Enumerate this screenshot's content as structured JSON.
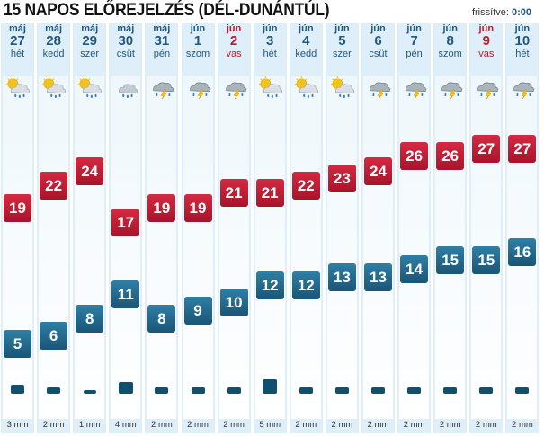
{
  "title": "15 NAPOS ELŐREJELZÉS (DÉL-DUNÁNTÚL)",
  "updated": {
    "label": "frissítve:",
    "time": "0:00"
  },
  "colors": {
    "max": "#c0182e",
    "min": "#1f5f82",
    "header": "#22587e",
    "weekend": "#c0182e"
  },
  "days": [
    {
      "month": "máj",
      "day": "27",
      "weekday": "hét",
      "weekend": false,
      "icon": "partly-cloudy-rain-icon",
      "max": 19,
      "min": 5,
      "precip": 3,
      "rain_label": "3 mm"
    },
    {
      "month": "máj",
      "day": "28",
      "weekday": "kedd",
      "weekend": false,
      "icon": "partly-cloudy-rain-icon",
      "max": 22,
      "min": 6,
      "precip": 2,
      "rain_label": "2 mm"
    },
    {
      "month": "máj",
      "day": "29",
      "weekday": "szer",
      "weekend": false,
      "icon": "partly-cloudy-rain-icon",
      "max": 24,
      "min": 8,
      "precip": 1,
      "rain_label": "1 mm"
    },
    {
      "month": "máj",
      "day": "30",
      "weekday": "csüt",
      "weekend": false,
      "icon": "cloudy-rain-icon",
      "max": 17,
      "min": 11,
      "precip": 4,
      "rain_label": "4 mm"
    },
    {
      "month": "máj",
      "day": "31",
      "weekday": "pén",
      "weekend": false,
      "icon": "thunderstorm-icon",
      "max": 19,
      "min": 8,
      "precip": 2,
      "rain_label": "2 mm"
    },
    {
      "month": "jún",
      "day": "1",
      "weekday": "szom",
      "weekend": false,
      "icon": "thunderstorm-icon",
      "max": 19,
      "min": 9,
      "precip": 2,
      "rain_label": "2 mm"
    },
    {
      "month": "jún",
      "day": "2",
      "weekday": "vas",
      "weekend": true,
      "icon": "thunderstorm-icon",
      "max": 21,
      "min": 10,
      "precip": 2,
      "rain_label": "2 mm"
    },
    {
      "month": "jún",
      "day": "3",
      "weekday": "hét",
      "weekend": false,
      "icon": "partly-cloudy-rain-icon",
      "max": 21,
      "min": 12,
      "precip": 5,
      "rain_label": "5 mm"
    },
    {
      "month": "jún",
      "day": "4",
      "weekday": "kedd",
      "weekend": false,
      "icon": "partly-cloudy-rain-icon",
      "max": 22,
      "min": 12,
      "precip": 2,
      "rain_label": "2 mm"
    },
    {
      "month": "jún",
      "day": "5",
      "weekday": "szer",
      "weekend": false,
      "icon": "partly-cloudy-rain-icon",
      "max": 23,
      "min": 13,
      "precip": 2,
      "rain_label": "2 mm"
    },
    {
      "month": "jún",
      "day": "6",
      "weekday": "csüt",
      "weekend": false,
      "icon": "thunderstorm-icon",
      "max": 24,
      "min": 13,
      "precip": 2,
      "rain_label": "2 mm"
    },
    {
      "month": "jún",
      "day": "7",
      "weekday": "pén",
      "weekend": false,
      "icon": "thunderstorm-icon",
      "max": 26,
      "min": 14,
      "precip": 2,
      "rain_label": "2 mm"
    },
    {
      "month": "jún",
      "day": "8",
      "weekday": "szom",
      "weekend": false,
      "icon": "thunderstorm-icon",
      "max": 26,
      "min": 15,
      "precip": 2,
      "rain_label": "2 mm"
    },
    {
      "month": "jún",
      "day": "9",
      "weekday": "vas",
      "weekend": true,
      "icon": "thunderstorm-icon",
      "max": 27,
      "min": 15,
      "precip": 2,
      "rain_label": "2 mm"
    },
    {
      "month": "jún",
      "day": "10",
      "weekday": "hét",
      "weekend": false,
      "icon": "thunderstorm-icon",
      "max": 27,
      "min": 16,
      "precip": 2,
      "rain_label": "2 mm"
    }
  ]
}
